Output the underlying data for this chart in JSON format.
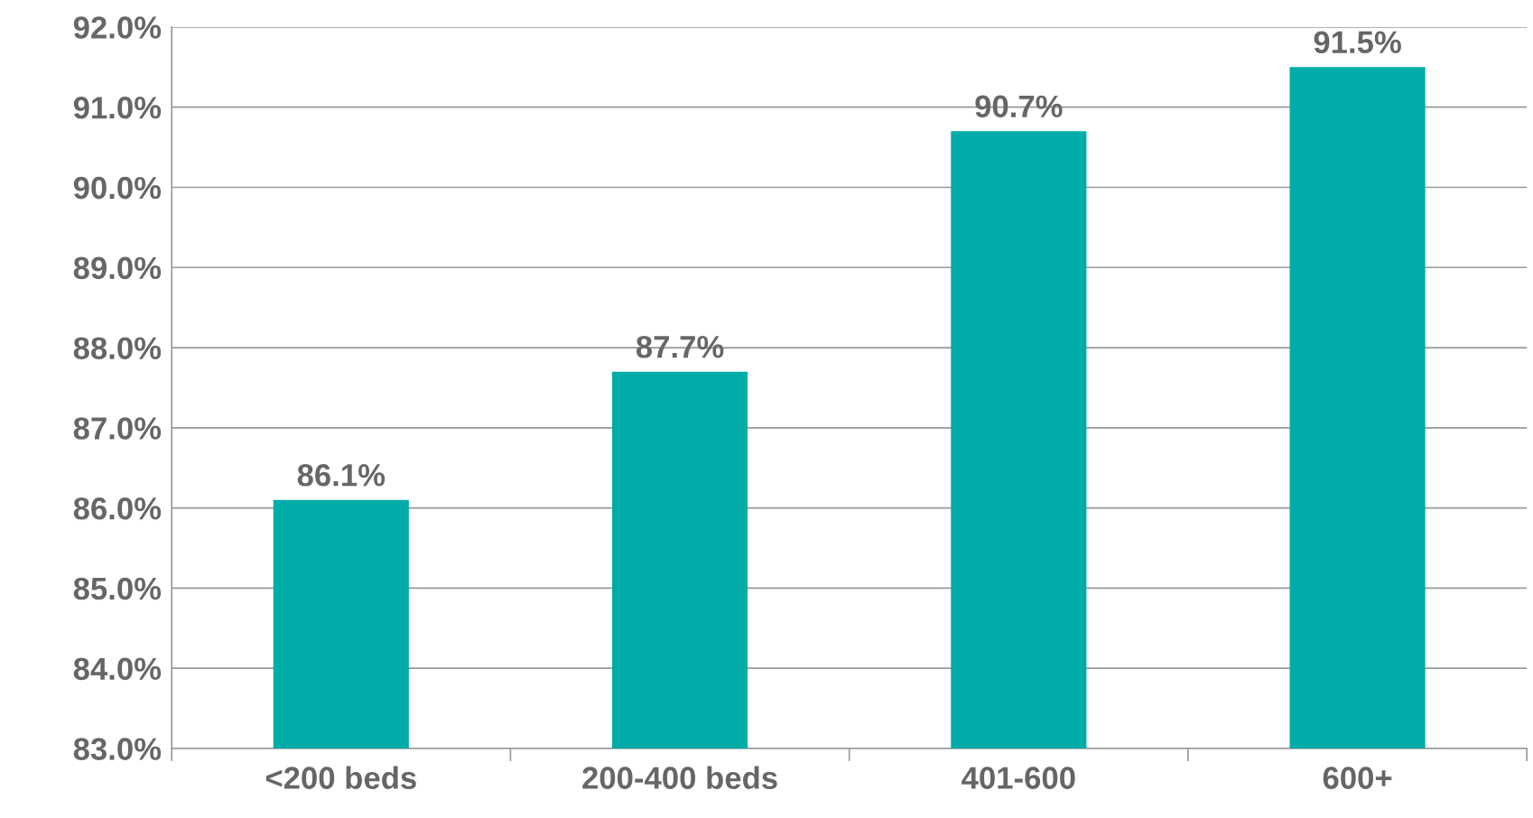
{
  "chart_data": {
    "type": "bar",
    "categories": [
      "<200 beds",
      "200-400 beds",
      "401-600",
      "600+"
    ],
    "values": [
      86.1,
      87.7,
      90.7,
      91.5
    ],
    "value_labels": [
      "86.1%",
      "87.7%",
      "90.7%",
      "91.5%"
    ],
    "color": "#00aca8",
    "ylim": [
      83,
      92
    ],
    "yticks": [
      {
        "value": 83,
        "label": "83.0%"
      },
      {
        "value": 84,
        "label": "84.0%"
      },
      {
        "value": 85,
        "label": "85.0%"
      },
      {
        "value": 86,
        "label": "86.0%"
      },
      {
        "value": 87,
        "label": "87.0%"
      },
      {
        "value": 88,
        "label": "88.0%"
      },
      {
        "value": 89,
        "label": "89.0%"
      },
      {
        "value": 90,
        "label": "90.0%"
      },
      {
        "value": 91,
        "label": "91.0%"
      },
      {
        "value": 92,
        "label": "92.0%"
      }
    ],
    "grid": "y"
  }
}
